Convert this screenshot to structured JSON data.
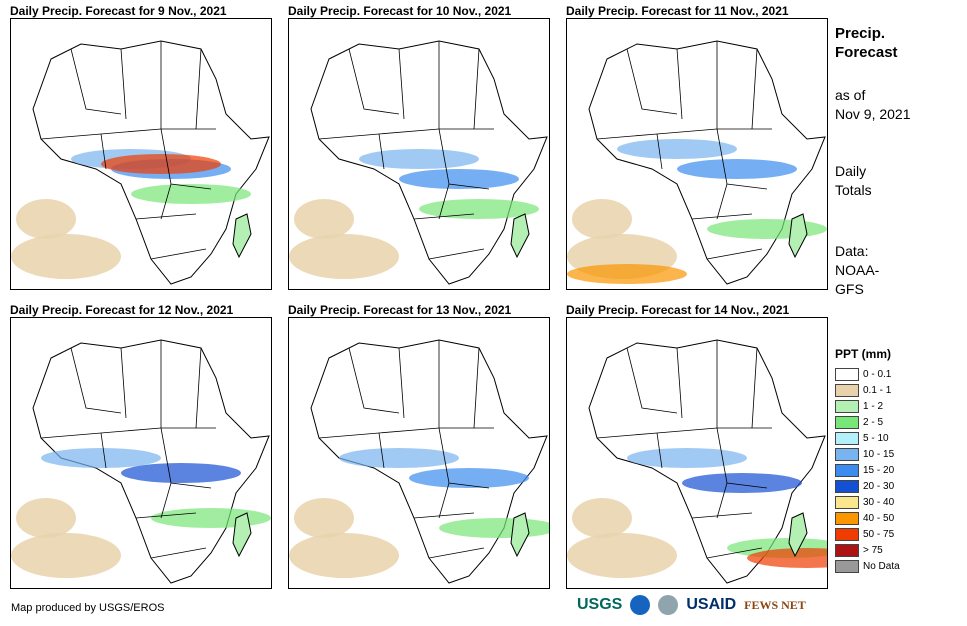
{
  "panels": [
    {
      "title": "Daily Precip. Forecast for 9 Nov., 2021"
    },
    {
      "title": "Daily Precip. Forecast for 10 Nov., 2021"
    },
    {
      "title": "Daily Precip. Forecast for 11 Nov., 2021"
    },
    {
      "title": "Daily Precip. Forecast for 12 Nov., 2021"
    },
    {
      "title": "Daily Precip. Forecast for 13 Nov., 2021"
    },
    {
      "title": "Daily Precip. Forecast for 14 Nov., 2021"
    }
  ],
  "side": {
    "title_line1": "Precip.",
    "title_line2": "Forecast",
    "asof_line1": "as of",
    "asof_line2": "Nov 9, 2021",
    "daily_line1": "Daily",
    "daily_line2": "Totals",
    "data_line1": "Data:",
    "data_line2": "NOAA-",
    "data_line3": "GFS"
  },
  "legend": {
    "title": "PPT (mm)",
    "items": [
      {
        "label": "0 - 0.1",
        "color": "#ffffff"
      },
      {
        "label": "0.1 - 1",
        "color": "#e8d2ac"
      },
      {
        "label": "1 - 2",
        "color": "#b4f0b4"
      },
      {
        "label": "2 - 5",
        "color": "#78e678"
      },
      {
        "label": "5 - 10",
        "color": "#b4f0fa"
      },
      {
        "label": "10 - 15",
        "color": "#78b4f0"
      },
      {
        "label": "15 - 20",
        "color": "#3c8cf0"
      },
      {
        "label": "20 - 30",
        "color": "#1450d2"
      },
      {
        "label": "30 - 40",
        "color": "#fae68c"
      },
      {
        "label": "40 - 50",
        "color": "#fa9600"
      },
      {
        "label": "50 - 75",
        "color": "#f03c00"
      },
      {
        "label": "> 75",
        "color": "#aa1414"
      },
      {
        "label": "No Data",
        "color": "#999999"
      }
    ]
  },
  "credit": "Map produced by USGS/EROS",
  "logos": {
    "usgs": "USGS",
    "usaid": "USAID",
    "fews": "FEWS NET"
  },
  "colors": {
    "ocean_land_bg": "#ffffff",
    "border": "#000000"
  }
}
